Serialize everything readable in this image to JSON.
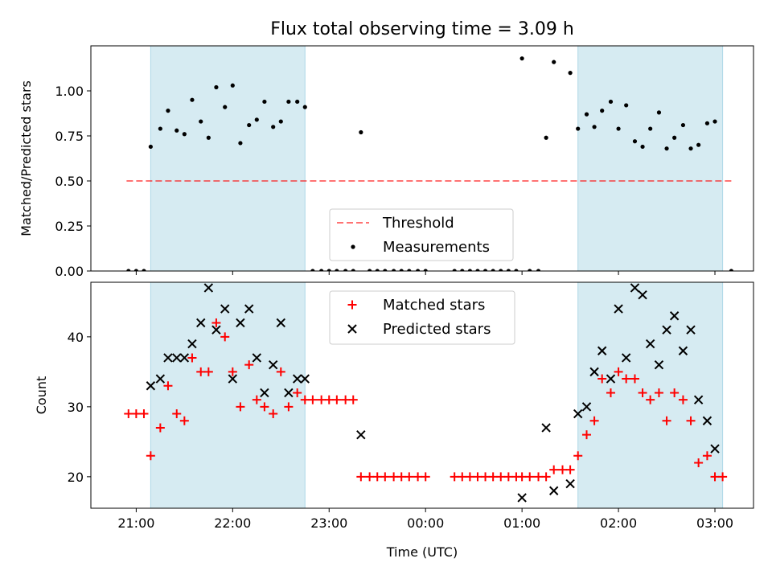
{
  "chart_data": {
    "title": "Flux total observing time = 3.09 h",
    "xlabel": "Time (UTC)",
    "x_tick_labels": [
      "21:00",
      "22:00",
      "23:00",
      "00:00",
      "01:00",
      "02:00",
      "03:00"
    ],
    "xlim_hours": [
      20.53,
      27.4
    ],
    "shaded_color": "#add8e6",
    "shaded_intervals_hours": [
      [
        21.15,
        22.75
      ],
      [
        25.58,
        27.08
      ]
    ],
    "panels": [
      {
        "type": "scatter",
        "ylabel": "Matched/Predicted stars",
        "ylim": [
          0,
          1.25
        ],
        "yticks": [
          0.0,
          0.25,
          0.5,
          0.75,
          1.0
        ],
        "ytick_labels": [
          "0.00",
          "0.25",
          "0.50",
          "0.75",
          "1.00"
        ],
        "threshold": {
          "label": "Threshold",
          "value": 0.5,
          "x_range_hours": [
            20.9,
            27.17
          ],
          "color": "#ff0000"
        },
        "series": [
          {
            "name": "Measurements",
            "color": "#000000",
            "marker": "dot",
            "points": [
              [
                20.92,
                0.0
              ],
              [
                21.0,
                0.0
              ],
              [
                21.08,
                0.0
              ],
              [
                21.15,
                0.69
              ],
              [
                21.25,
                0.79
              ],
              [
                21.33,
                0.89
              ],
              [
                21.42,
                0.78
              ],
              [
                21.5,
                0.76
              ],
              [
                21.58,
                0.95
              ],
              [
                21.67,
                0.83
              ],
              [
                21.75,
                0.74
              ],
              [
                21.83,
                1.02
              ],
              [
                21.92,
                0.91
              ],
              [
                22.0,
                1.03
              ],
              [
                22.08,
                0.71
              ],
              [
                22.17,
                0.81
              ],
              [
                22.25,
                0.84
              ],
              [
                22.33,
                0.94
              ],
              [
                22.42,
                0.8
              ],
              [
                22.5,
                0.83
              ],
              [
                22.58,
                0.94
              ],
              [
                22.67,
                0.94
              ],
              [
                22.75,
                0.91
              ],
              [
                22.83,
                0.0
              ],
              [
                22.92,
                0.0
              ],
              [
                23.0,
                0.0
              ],
              [
                23.08,
                0.0
              ],
              [
                23.17,
                0.0
              ],
              [
                23.25,
                0.0
              ],
              [
                23.33,
                0.77
              ],
              [
                23.42,
                0.0
              ],
              [
                23.5,
                0.0
              ],
              [
                23.58,
                0.0
              ],
              [
                23.67,
                0.0
              ],
              [
                23.75,
                0.0
              ],
              [
                23.83,
                0.0
              ],
              [
                23.92,
                0.0
              ],
              [
                24.0,
                0.0
              ],
              [
                24.3,
                0.0
              ],
              [
                24.38,
                0.0
              ],
              [
                24.46,
                0.0
              ],
              [
                24.54,
                0.0
              ],
              [
                24.62,
                0.0
              ],
              [
                24.7,
                0.0
              ],
              [
                24.78,
                0.0
              ],
              [
                24.86,
                0.0
              ],
              [
                24.94,
                0.0
              ],
              [
                25.0,
                1.18
              ],
              [
                25.08,
                0.0
              ],
              [
                25.17,
                0.0
              ],
              [
                25.25,
                0.74
              ],
              [
                25.33,
                1.16
              ],
              [
                25.5,
                1.1
              ],
              [
                25.58,
                0.79
              ],
              [
                25.67,
                0.87
              ],
              [
                25.75,
                0.8
              ],
              [
                25.83,
                0.89
              ],
              [
                25.92,
                0.94
              ],
              [
                26.0,
                0.79
              ],
              [
                26.08,
                0.92
              ],
              [
                26.17,
                0.72
              ],
              [
                26.25,
                0.69
              ],
              [
                26.33,
                0.79
              ],
              [
                26.42,
                0.88
              ],
              [
                26.5,
                0.68
              ],
              [
                26.58,
                0.74
              ],
              [
                26.67,
                0.81
              ],
              [
                26.75,
                0.68
              ],
              [
                26.83,
                0.7
              ],
              [
                26.92,
                0.82
              ],
              [
                27.0,
                0.83
              ],
              [
                27.17,
                0.0
              ]
            ]
          }
        ],
        "legend": {
          "location": "lower-center",
          "entries": [
            "Threshold",
            "Measurements"
          ]
        }
      },
      {
        "type": "scatter",
        "ylabel": "Count",
        "ylim": [
          15.5,
          47.8
        ],
        "yticks": [
          20,
          30,
          40
        ],
        "ytick_labels": [
          "20",
          "30",
          "40"
        ],
        "series": [
          {
            "name": "Matched stars",
            "color": "#ff0000",
            "marker": "plus",
            "points": [
              [
                20.92,
                29
              ],
              [
                21.0,
                29
              ],
              [
                21.08,
                29
              ],
              [
                21.15,
                23
              ],
              [
                21.25,
                27
              ],
              [
                21.33,
                33
              ],
              [
                21.42,
                29
              ],
              [
                21.5,
                28
              ],
              [
                21.58,
                37
              ],
              [
                21.67,
                35
              ],
              [
                21.75,
                35
              ],
              [
                21.83,
                42
              ],
              [
                21.92,
                40
              ],
              [
                22.0,
                35
              ],
              [
                22.08,
                30
              ],
              [
                22.17,
                36
              ],
              [
                22.25,
                31
              ],
              [
                22.33,
                30
              ],
              [
                22.42,
                29
              ],
              [
                22.5,
                35
              ],
              [
                22.58,
                30
              ],
              [
                22.67,
                32
              ],
              [
                22.75,
                31
              ],
              [
                22.83,
                31
              ],
              [
                22.92,
                31
              ],
              [
                23.0,
                31
              ],
              [
                23.08,
                31
              ],
              [
                23.17,
                31
              ],
              [
                23.25,
                31
              ],
              [
                23.33,
                20
              ],
              [
                23.42,
                20
              ],
              [
                23.5,
                20
              ],
              [
                23.58,
                20
              ],
              [
                23.67,
                20
              ],
              [
                23.75,
                20
              ],
              [
                23.83,
                20
              ],
              [
                23.92,
                20
              ],
              [
                24.0,
                20
              ],
              [
                24.3,
                20
              ],
              [
                24.38,
                20
              ],
              [
                24.46,
                20
              ],
              [
                24.54,
                20
              ],
              [
                24.62,
                20
              ],
              [
                24.7,
                20
              ],
              [
                24.78,
                20
              ],
              [
                24.86,
                20
              ],
              [
                24.94,
                20
              ],
              [
                25.0,
                20
              ],
              [
                25.08,
                20
              ],
              [
                25.17,
                20
              ],
              [
                25.25,
                20
              ],
              [
                25.33,
                21
              ],
              [
                25.42,
                21
              ],
              [
                25.5,
                21
              ],
              [
                25.58,
                23
              ],
              [
                25.67,
                26
              ],
              [
                25.75,
                28
              ],
              [
                25.83,
                34
              ],
              [
                25.92,
                32
              ],
              [
                26.0,
                35
              ],
              [
                26.08,
                34
              ],
              [
                26.17,
                34
              ],
              [
                26.25,
                32
              ],
              [
                26.33,
                31
              ],
              [
                26.42,
                32
              ],
              [
                26.5,
                28
              ],
              [
                26.58,
                32
              ],
              [
                26.67,
                31
              ],
              [
                26.75,
                28
              ],
              [
                26.83,
                22
              ],
              [
                26.92,
                23
              ],
              [
                27.0,
                20
              ],
              [
                27.08,
                20
              ]
            ]
          },
          {
            "name": "Predicted stars",
            "color": "#000000",
            "marker": "x",
            "points": [
              [
                21.15,
                33
              ],
              [
                21.25,
                34
              ],
              [
                21.33,
                37
              ],
              [
                21.42,
                37
              ],
              [
                21.5,
                37
              ],
              [
                21.58,
                39
              ],
              [
                21.67,
                42
              ],
              [
                21.75,
                47
              ],
              [
                21.83,
                41
              ],
              [
                21.92,
                44
              ],
              [
                22.0,
                34
              ],
              [
                22.08,
                42
              ],
              [
                22.17,
                44
              ],
              [
                22.25,
                37
              ],
              [
                22.33,
                32
              ],
              [
                22.42,
                36
              ],
              [
                22.5,
                42
              ],
              [
                22.58,
                32
              ],
              [
                22.67,
                34
              ],
              [
                22.75,
                34
              ],
              [
                23.33,
                26
              ],
              [
                25.0,
                17
              ],
              [
                25.25,
                27
              ],
              [
                25.33,
                18
              ],
              [
                25.5,
                19
              ],
              [
                25.58,
                29
              ],
              [
                25.67,
                30
              ],
              [
                25.75,
                35
              ],
              [
                25.83,
                38
              ],
              [
                25.92,
                34
              ],
              [
                26.0,
                44
              ],
              [
                26.08,
                37
              ],
              [
                26.17,
                47
              ],
              [
                26.25,
                46
              ],
              [
                26.33,
                39
              ],
              [
                26.42,
                36
              ],
              [
                26.5,
                41
              ],
              [
                26.58,
                43
              ],
              [
                26.67,
                38
              ],
              [
                26.75,
                41
              ],
              [
                26.83,
                31
              ],
              [
                26.92,
                28
              ],
              [
                27.0,
                24
              ]
            ]
          }
        ],
        "legend": {
          "location": "upper-center",
          "entries": [
            "Matched stars",
            "Predicted stars"
          ]
        }
      }
    ]
  }
}
